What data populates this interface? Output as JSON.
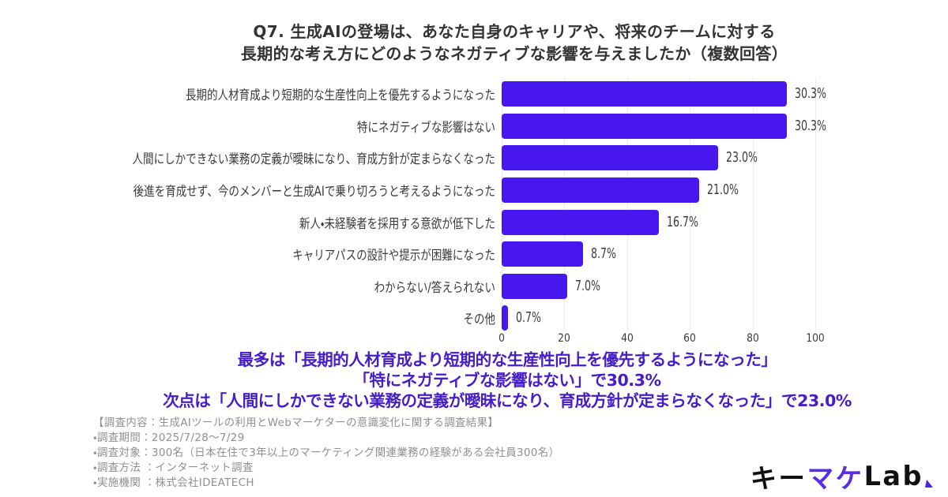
{
  "title": {
    "line1": "Q7. 生成AIの登場は、あなた自身のキャリアや、将来のチームに対する",
    "line2": "長期的な考え方にどのようなネガティブな影響を与えましたか（複数回答）"
  },
  "chart_data": {
    "type": "bar",
    "orientation": "horizontal",
    "title": "",
    "xlabel": "",
    "ylabel": "",
    "categories": [
      "長期的人材育成より短期的な生産性向上を優先するようになった",
      "特にネガティブな影響はない",
      "人間にしかできない業務の定義が曖昧になり、育成方針が定まらなくなった",
      "後進を育成せず、今のメンバーと生成AIで乗り切ろうと考えるようになった",
      "新人・未経験者を採用する意欲が低下した",
      "キャリアパスの設計や提示が困難になった",
      "わからない/答えられない",
      "その他"
    ],
    "values": [
      91,
      91,
      69,
      63,
      50,
      26,
      21,
      2
    ],
    "percents": [
      30.3,
      30.3,
      23.0,
      21.0,
      16.7,
      8.7,
      7.0,
      0.7
    ],
    "value_labels": [
      "30.3%",
      "30.3%",
      "23.0%",
      "21.0%",
      "16.7%",
      "8.7%",
      "7.0%",
      "0.7%"
    ],
    "x_ticks": [
      0,
      20,
      40,
      60,
      80,
      100
    ],
    "xlim": [
      0,
      100
    ],
    "grid": true,
    "legend": false,
    "bar_color": "#4817f0"
  },
  "summary": {
    "lines": [
      "最多は「長期的人材育成より短期的な生産性向上を優先するようになった」",
      "「特にネガティブな影響はない」で30.3%",
      "次点は「人間にしかできない業務の定義が曖昧になり、育成方針が定まらなくなった」で23.0%"
    ],
    "color": "#471cc9"
  },
  "survey_notes": {
    "lines": [
      "【調査内容：生成AIツールの利用とWebマーケターの意識変化に関する調査結果】",
      "・調査期間：2025/7/28〜7/29",
      "・調査対象：300名（日本在住で3年以上のマーケティング関連業務の経験がある会社員300名）",
      "・調査方法 ：インターネット調査",
      "・実施機関 ：株式会社IDEATECH"
    ]
  },
  "logo": {
    "segments": [
      {
        "text": "キー",
        "color": "#111113"
      },
      {
        "text": "マケ",
        "color": "#5a2de4"
      },
      {
        "text": "Lab",
        "color": "#111113"
      }
    ],
    "mark_color": "#4f24e0"
  }
}
